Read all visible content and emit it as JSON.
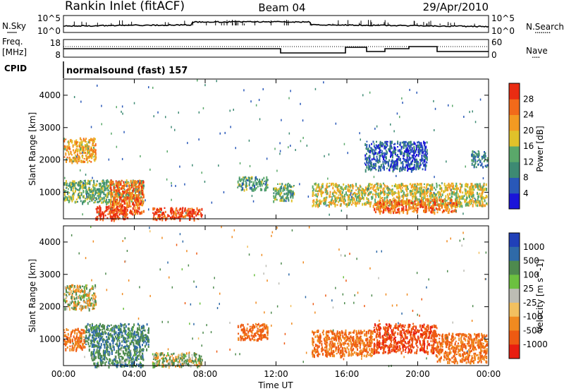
{
  "header": {
    "station": "Rankin Inlet (fitACF)",
    "beam": "Beam 04",
    "date": "29/Apr/2010"
  },
  "noise_panel": {
    "left_label": "N.Sky",
    "left_tick_top": "10^5",
    "left_tick_bottom": "10^0",
    "right_tick_top": "10^5",
    "right_tick_bottom": "10^0",
    "right_label": "N.Search",
    "right_legend_dots": "........"
  },
  "freq_panel": {
    "left_label_1": "Freq.",
    "left_label_2": "[MHz]",
    "left_tick_top": "18",
    "left_tick_bottom": "8",
    "right_tick_top": "60",
    "right_tick_bottom": "0",
    "right_label": "Nave",
    "right_legend_dots": "...."
  },
  "cpid": {
    "label": "CPID",
    "value": "normalsound (fast) 157"
  },
  "chart_data": [
    {
      "type": "heatmap",
      "title": "",
      "quantity": "Power",
      "xlabel": "",
      "ylabel": "Slant Range [km]",
      "x_ticks": [
        "00:00",
        "04:00",
        "08:00",
        "12:00",
        "16:00",
        "20:00",
        "00:00"
      ],
      "y_ticks": [
        1000,
        2000,
        3000,
        4000
      ],
      "ylim": [
        180,
        4500
      ],
      "colorbar_label": "Power [dB]",
      "colorbar_ticks": [
        "4",
        "8",
        "12",
        "16",
        "20",
        "24",
        "28"
      ],
      "colorbar_colors": [
        "#1a14d9",
        "#2958b8",
        "#3d8a73",
        "#5aa86a",
        "#e0c22a",
        "#f39a22",
        "#f26a1a",
        "#ea2c12"
      ],
      "echo_regions": [
        {
          "t_start": 0.0,
          "t_end": 1.8,
          "r_min": 1950,
          "r_max": 2700,
          "power_db": 21
        },
        {
          "t_start": 0.0,
          "t_end": 4.5,
          "r_min": 700,
          "r_max": 1400,
          "power_db": 14
        },
        {
          "t_start": 2.6,
          "t_end": 4.5,
          "r_min": 350,
          "r_max": 1400,
          "power_db": 26
        },
        {
          "t_start": 1.8,
          "t_end": 3.6,
          "r_min": 180,
          "r_max": 600,
          "power_db": 30
        },
        {
          "t_start": 5.0,
          "t_end": 7.8,
          "r_min": 180,
          "r_max": 550,
          "power_db": 29
        },
        {
          "t_start": 9.8,
          "t_end": 11.5,
          "r_min": 1100,
          "r_max": 1500,
          "power_db": 12
        },
        {
          "t_start": 11.8,
          "t_end": 13.0,
          "r_min": 750,
          "r_max": 1300,
          "power_db": 13
        },
        {
          "t_start": 14.0,
          "t_end": 23.9,
          "r_min": 600,
          "r_max": 1300,
          "power_db": 18
        },
        {
          "t_start": 17.5,
          "t_end": 22.2,
          "r_min": 400,
          "r_max": 800,
          "power_db": 26
        },
        {
          "t_start": 17.0,
          "t_end": 20.5,
          "r_min": 1700,
          "r_max": 2600,
          "power_db": 6
        },
        {
          "t_start": 23.0,
          "t_end": 23.9,
          "r_min": 1800,
          "r_max": 2300,
          "power_db": 10
        }
      ]
    },
    {
      "type": "heatmap",
      "title": "",
      "quantity": "Velocity",
      "xlabel": "Time UT",
      "ylabel": "Slant Range [km]",
      "x_ticks": [
        "00:00",
        "04:00",
        "08:00",
        "12:00",
        "16:00",
        "20:00",
        "00:00"
      ],
      "y_ticks": [
        1000,
        2000,
        3000,
        4000
      ],
      "ylim": [
        180,
        4500
      ],
      "colorbar_label": "Velocity [m s^-1]",
      "colorbar_ticks": [
        "1000",
        "500",
        "100",
        "25",
        "-25",
        "-100",
        "-500",
        "-1000"
      ],
      "colorbar_colors": [
        "#2040b8",
        "#2f6aa8",
        "#4e8a4e",
        "#6cc040",
        "#bcbcb4",
        "#f2c060",
        "#f08a20",
        "#ee5a12",
        "#e81e10"
      ],
      "echo_regions": [
        {
          "t_start": 0.0,
          "t_end": 1.8,
          "r_min": 1950,
          "r_max": 2700,
          "velocity": 0
        },
        {
          "t_start": 0.0,
          "t_end": 1.2,
          "r_min": 700,
          "r_max": 1350,
          "velocity": -300
        },
        {
          "t_start": 1.2,
          "t_end": 4.8,
          "r_min": 700,
          "r_max": 1500,
          "velocity": 250
        },
        {
          "t_start": 1.5,
          "t_end": 4.5,
          "r_min": 180,
          "r_max": 700,
          "velocity": 200
        },
        {
          "t_start": 5.0,
          "t_end": 7.8,
          "r_min": 180,
          "r_max": 600,
          "velocity": 80
        },
        {
          "t_start": 9.8,
          "t_end": 11.5,
          "r_min": 1000,
          "r_max": 1500,
          "velocity": -400
        },
        {
          "t_start": 14.0,
          "t_end": 17.5,
          "r_min": 500,
          "r_max": 1300,
          "velocity": -300
        },
        {
          "t_start": 17.5,
          "t_end": 21.0,
          "r_min": 600,
          "r_max": 1500,
          "velocity": -700
        },
        {
          "t_start": 21.0,
          "t_end": 23.9,
          "r_min": 300,
          "r_max": 1200,
          "velocity": -300
        }
      ]
    }
  ]
}
